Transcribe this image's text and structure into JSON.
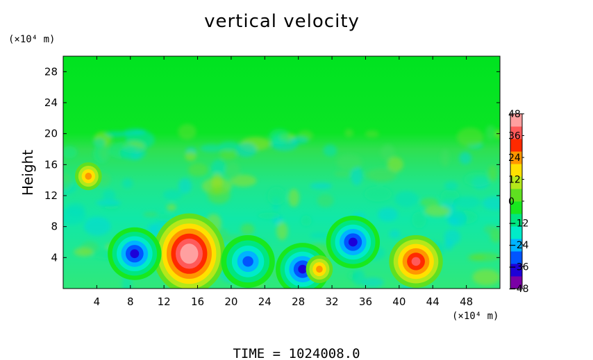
{
  "chart_data": {
    "type": "heatmap",
    "title": "vertical velocity",
    "ylabel": "Height",
    "xunit": "(×10⁴ m)",
    "yunit": "(×10⁴ m)",
    "xlim": [
      0,
      52
    ],
    "ylim": [
      0,
      30
    ],
    "xticks": [
      4,
      8,
      12,
      16,
      20,
      24,
      28,
      32,
      36,
      40,
      44,
      48
    ],
    "yticks": [
      4,
      8,
      12,
      16,
      20,
      24,
      28
    ],
    "colorbar": {
      "range": [
        -48,
        48
      ],
      "ticks": [
        48,
        36,
        24,
        12,
        0,
        -12,
        -24,
        -36,
        -48
      ],
      "colors": [
        "#7a00a6",
        "#1d00d8",
        "#0055ff",
        "#00b4ff",
        "#00ebc8",
        "#00e680",
        "#18e81e",
        "#5fe020",
        "#b4e81a",
        "#ffe000",
        "#ff9600",
        "#ff2a00",
        "#ff5a5a",
        "#ffa0a0"
      ]
    },
    "features": [
      {
        "x": 15,
        "y": 4.5,
        "value": 48
      },
      {
        "x": 42,
        "y": 3.5,
        "value": 36
      },
      {
        "x": 8.5,
        "y": 4.5,
        "value": -36
      },
      {
        "x": 22,
        "y": 3.5,
        "value": -30
      },
      {
        "x": 28.5,
        "y": 2.5,
        "value": -36
      },
      {
        "x": 34.5,
        "y": 6,
        "value": -36
      },
      {
        "x": 30.5,
        "y": 2.5,
        "value": 24
      },
      {
        "x": 3,
        "y": 14.5,
        "value": 24
      }
    ]
  },
  "footer": {
    "time_label": "TIME  =  1024008.0"
  }
}
